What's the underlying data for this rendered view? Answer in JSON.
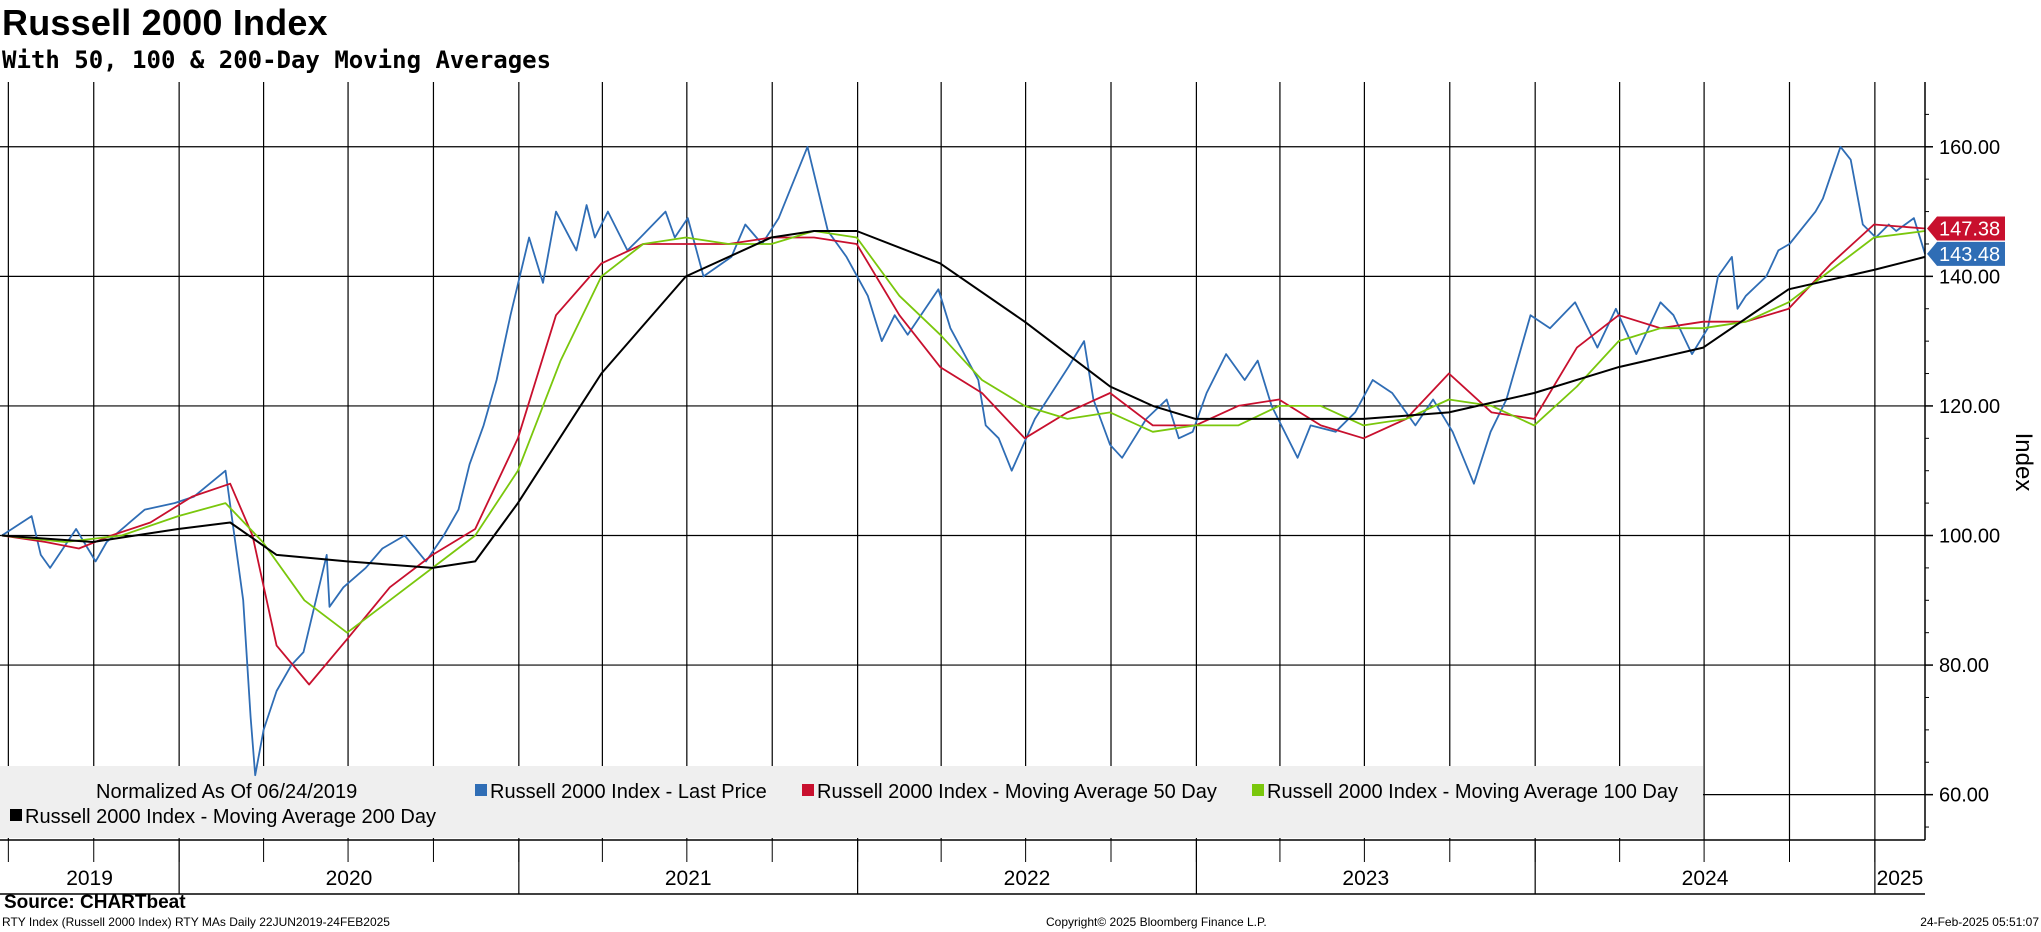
{
  "header": {
    "title": "Russell 2000 Index",
    "subtitle": "With 50, 100 & 200-Day Moving Averages"
  },
  "footer": {
    "source": "Source: CHARTbeat",
    "left": "RTY Index (Russell 2000 Index) RTY MAs  Daily 22JUN2019-24FEB2025",
    "middle": "Copyright© 2025 Bloomberg Finance L.P.",
    "right": "24-Feb-2025 05:51:07"
  },
  "chart_data": {
    "type": "line",
    "ylabel": "Index",
    "ylim": [
      53,
      170
    ],
    "yticks": [
      60,
      80,
      100,
      120,
      140,
      160
    ],
    "ytick_labels": [
      "60.00",
      "80.00",
      "100.00",
      "120.00",
      "140.00",
      "160.00"
    ],
    "xlim": [
      "2019-06-22",
      "2025-02-24"
    ],
    "year_labels": [
      "2019",
      "2020",
      "2021",
      "2022",
      "2023",
      "2024",
      "2025"
    ],
    "grid": true,
    "legend_note": "Normalized As Of 06/24/2019",
    "legend_position": "bottom-left",
    "series": [
      {
        "name": "Russell 2000 Index - Last Price",
        "color": "#2f6db5",
        "last_value": "143.48",
        "x": [
          "2019-06-24",
          "2019-07-26",
          "2019-08-05",
          "2019-08-15",
          "2019-09-12",
          "2019-10-03",
          "2019-10-15",
          "2019-11-25",
          "2019-12-27",
          "2020-01-17",
          "2020-02-20",
          "2020-03-10",
          "2020-03-18",
          "2020-03-23",
          "2020-04-01",
          "2020-04-15",
          "2020-05-01",
          "2020-05-14",
          "2020-06-08",
          "2020-06-11",
          "2020-06-26",
          "2020-07-20",
          "2020-08-07",
          "2020-08-31",
          "2020-09-23",
          "2020-10-12",
          "2020-10-28",
          "2020-11-09",
          "2020-11-24",
          "2020-12-08",
          "2020-12-23",
          "2021-01-12",
          "2021-01-27",
          "2021-02-10",
          "2021-03-04",
          "2021-03-15",
          "2021-03-24",
          "2021-04-07",
          "2021-04-28",
          "2021-05-12",
          "2021-06-08",
          "2021-06-18",
          "2021-07-02",
          "2021-07-19",
          "2021-08-18",
          "2021-09-02",
          "2021-09-20",
          "2021-10-08",
          "2021-11-08",
          "2021-11-30",
          "2021-12-20",
          "2022-01-12",
          "2022-01-27",
          "2022-02-10",
          "2022-02-24",
          "2022-03-29",
          "2022-04-11",
          "2022-05-11",
          "2022-05-19",
          "2022-06-02",
          "2022-06-16",
          "2022-07-11",
          "2022-08-16",
          "2022-09-02",
          "2022-09-12",
          "2022-09-30",
          "2022-10-13",
          "2022-11-08",
          "2022-11-30",
          "2022-12-13",
          "2022-12-28",
          "2023-01-12",
          "2023-02-02",
          "2023-02-22",
          "2023-03-08",
          "2023-03-23",
          "2023-04-20",
          "2023-05-04",
          "2023-05-31",
          "2023-06-21",
          "2023-07-10",
          "2023-07-31",
          "2023-08-25",
          "2023-09-13",
          "2023-10-04",
          "2023-10-27",
          "2023-11-14",
          "2023-12-01",
          "2023-12-27",
          "2024-01-17",
          "2024-02-13",
          "2024-03-08",
          "2024-03-28",
          "2024-04-19",
          "2024-05-15",
          "2024-05-29",
          "2024-06-18",
          "2024-07-05",
          "2024-07-16",
          "2024-07-31",
          "2024-08-06",
          "2024-08-15",
          "2024-09-06",
          "2024-09-19",
          "2024-10-01",
          "2024-10-29",
          "2024-11-06",
          "2024-11-25",
          "2024-12-06",
          "2024-12-19",
          "2025-01-02",
          "2025-01-16",
          "2025-01-24",
          "2025-02-12",
          "2025-02-24"
        ],
        "y": [
          100,
          103,
          97,
          95,
          101,
          96,
          99,
          104,
          105,
          106,
          110,
          90,
          72,
          63,
          70,
          76,
          80,
          82,
          97,
          89,
          92,
          95,
          98,
          100,
          96,
          100,
          104,
          111,
          117,
          124,
          134,
          146,
          139,
          150,
          144,
          151,
          146,
          150,
          144,
          146,
          150,
          146,
          149,
          140,
          143,
          148,
          145,
          149,
          160,
          147,
          143,
          137,
          130,
          134,
          131,
          138,
          132,
          124,
          117,
          115,
          110,
          118,
          126,
          130,
          121,
          114,
          112,
          118,
          121,
          115,
          116,
          122,
          128,
          124,
          127,
          120,
          112,
          117,
          116,
          119,
          124,
          122,
          117,
          121,
          116,
          108,
          116,
          121,
          134,
          132,
          136,
          129,
          135,
          128,
          136,
          134,
          128,
          132,
          140,
          143,
          135,
          137,
          140,
          144,
          145,
          150,
          152,
          160,
          158,
          148,
          146,
          148,
          147,
          149,
          143.48
        ]
      },
      {
        "name": "Russell 2000 Index - Moving Average 50 Day",
        "color": "#c8102e",
        "last_value": "147.38",
        "x": [
          "2019-06-24",
          "2019-08-10",
          "2019-09-15",
          "2019-10-20",
          "2019-12-01",
          "2020-01-15",
          "2020-02-25",
          "2020-03-20",
          "2020-04-15",
          "2020-05-20",
          "2020-06-30",
          "2020-08-15",
          "2020-09-30",
          "2020-11-15",
          "2020-12-31",
          "2021-02-10",
          "2021-03-31",
          "2021-05-15",
          "2021-06-30",
          "2021-08-15",
          "2021-09-30",
          "2021-11-15",
          "2021-12-31",
          "2022-02-15",
          "2022-03-31",
          "2022-05-15",
          "2022-06-30",
          "2022-08-15",
          "2022-09-30",
          "2022-11-15",
          "2022-12-31",
          "2023-02-15",
          "2023-03-31",
          "2023-05-15",
          "2023-06-30",
          "2023-08-15",
          "2023-09-30",
          "2023-11-15",
          "2023-12-31",
          "2024-02-15",
          "2024-03-31",
          "2024-05-15",
          "2024-06-30",
          "2024-08-15",
          "2024-09-30",
          "2024-11-15",
          "2024-12-31",
          "2025-02-24"
        ],
        "y": [
          100,
          99,
          98,
          100,
          102,
          106,
          108,
          100,
          83,
          77,
          84,
          92,
          97,
          101,
          115,
          134,
          142,
          145,
          145,
          145,
          146,
          146,
          145,
          134,
          126,
          122,
          115,
          119,
          122,
          117,
          117,
          120,
          121,
          117,
          115,
          118,
          125,
          119,
          118,
          129,
          134,
          132,
          133,
          133,
          135,
          142,
          148,
          147.38
        ]
      },
      {
        "name": "Russell 2000 Index - Moving Average 100 Day",
        "color": "#7ac70c",
        "x": [
          "2019-06-24",
          "2019-08-31",
          "2019-10-31",
          "2019-12-31",
          "2020-02-20",
          "2020-03-31",
          "2020-05-15",
          "2020-06-30",
          "2020-08-15",
          "2020-09-30",
          "2020-11-15",
          "2020-12-31",
          "2021-02-15",
          "2021-03-31",
          "2021-05-15",
          "2021-06-30",
          "2021-08-15",
          "2021-09-30",
          "2021-11-15",
          "2021-12-31",
          "2022-02-15",
          "2022-03-31",
          "2022-05-15",
          "2022-06-30",
          "2022-08-15",
          "2022-09-30",
          "2022-11-15",
          "2022-12-31",
          "2023-02-15",
          "2023-03-31",
          "2023-05-15",
          "2023-06-30",
          "2023-08-15",
          "2023-09-30",
          "2023-11-15",
          "2023-12-31",
          "2024-02-15",
          "2024-03-31",
          "2024-05-15",
          "2024-06-30",
          "2024-08-15",
          "2024-09-30",
          "2024-11-15",
          "2024-12-31",
          "2025-02-24"
        ],
        "y": [
          100,
          99,
          100,
          103,
          105,
          99,
          90,
          85,
          90,
          95,
          100,
          110,
          127,
          140,
          145,
          146,
          145,
          145,
          147,
          146,
          137,
          131,
          124,
          120,
          118,
          119,
          116,
          117,
          117,
          120,
          120,
          117,
          118,
          121,
          120,
          117,
          123,
          130,
          132,
          132,
          133,
          136,
          141,
          146,
          147
        ]
      },
      {
        "name": "Russell 2000 Index - Moving Average 200 Day",
        "color": "#000000",
        "x": [
          "2019-06-24",
          "2019-09-30",
          "2019-12-31",
          "2020-02-25",
          "2020-04-15",
          "2020-06-30",
          "2020-09-30",
          "2020-11-15",
          "2020-12-31",
          "2021-03-31",
          "2021-06-30",
          "2021-09-30",
          "2021-11-15",
          "2021-12-31",
          "2022-03-31",
          "2022-06-30",
          "2022-09-30",
          "2022-11-15",
          "2022-12-31",
          "2023-03-31",
          "2023-06-30",
          "2023-09-30",
          "2023-12-31",
          "2024-03-31",
          "2024-06-30",
          "2024-09-30",
          "2024-12-31",
          "2025-02-24"
        ],
        "y": [
          100,
          99,
          101,
          102,
          97,
          96,
          95,
          96,
          105,
          125,
          140,
          146,
          147,
          147,
          142,
          133,
          123,
          120,
          118,
          118,
          118,
          119,
          122,
          126,
          129,
          138,
          141,
          143
        ]
      }
    ]
  }
}
